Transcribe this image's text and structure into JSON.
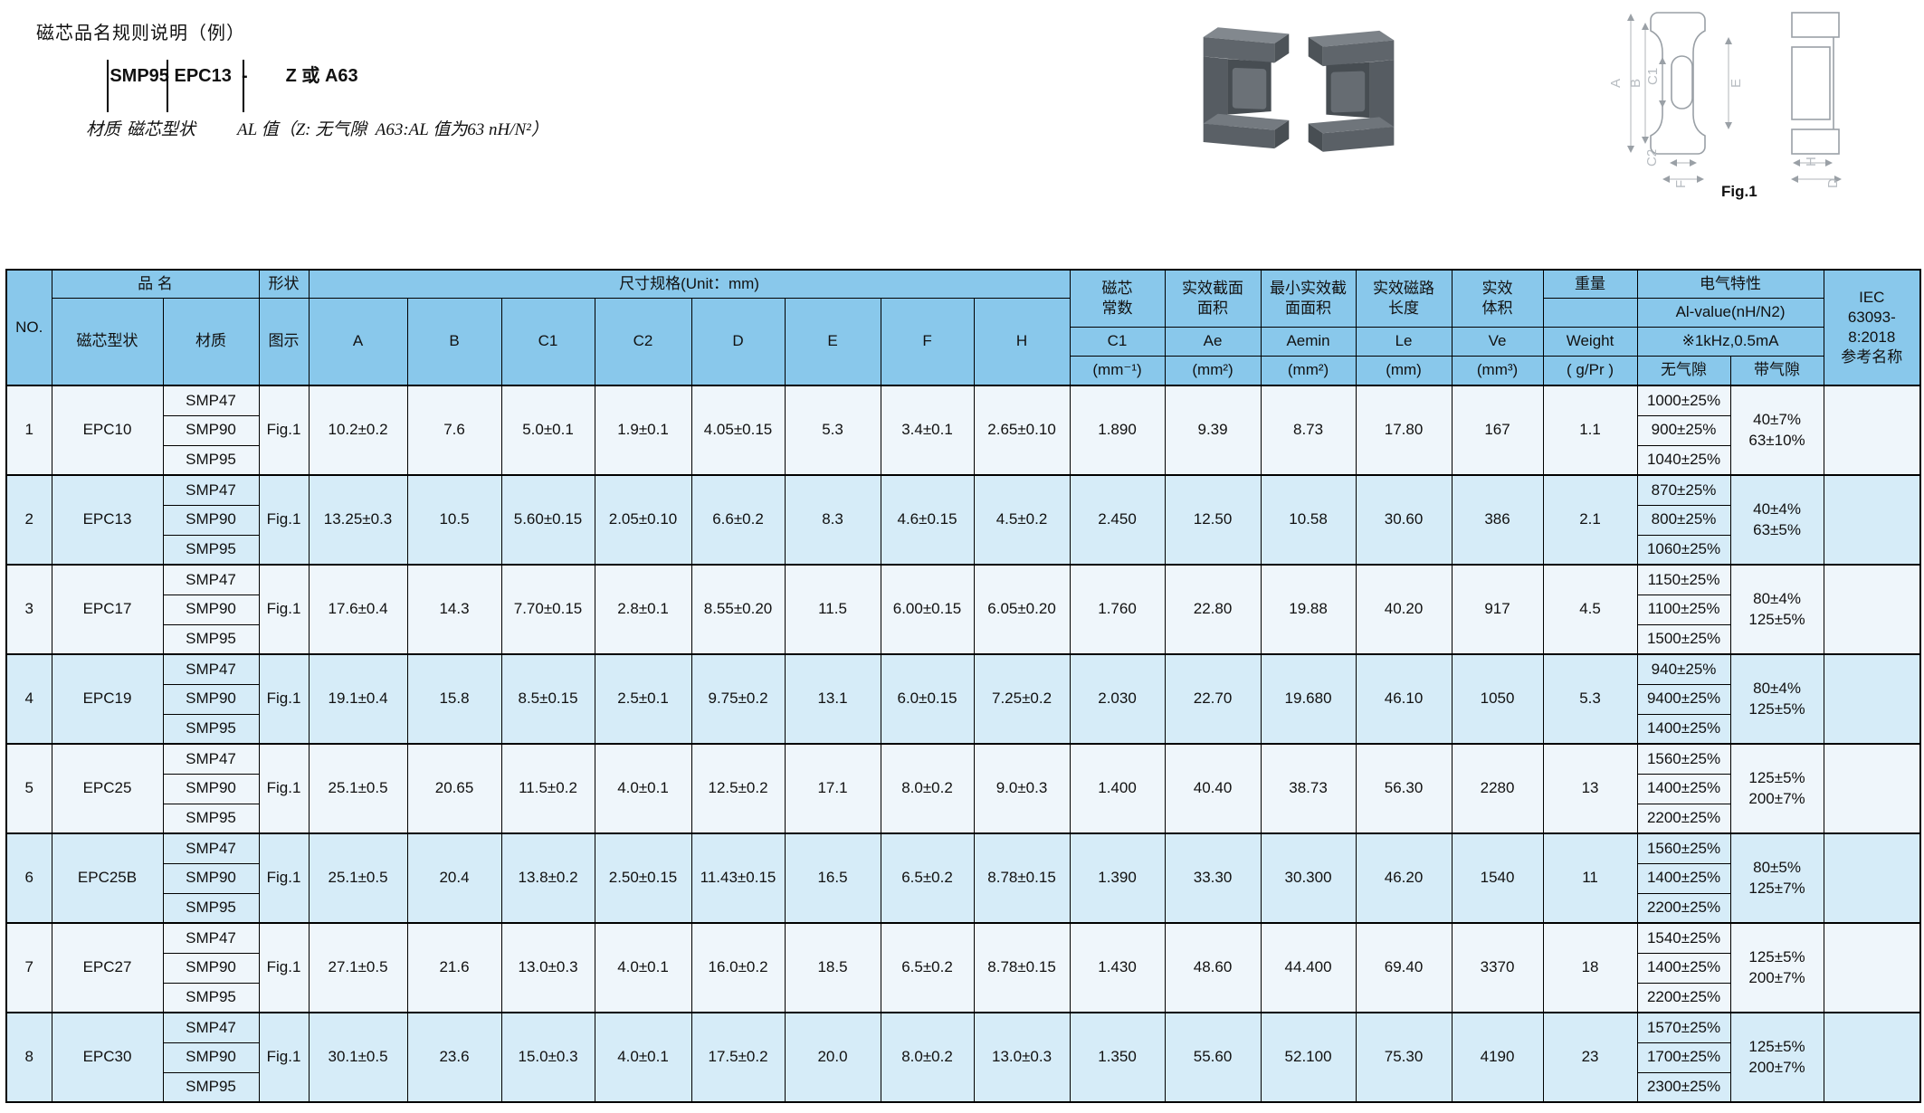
{
  "annotation": {
    "title": "磁芯品名规则说明（例）",
    "example_prefix": "SMP95 EPC13  -",
    "example_suffix": "Z 或 A63",
    "label_material": "材质",
    "label_shape": "磁芯型状",
    "label_al": "AL 值（Z: 无气隙  A63:AL 值为63 nH/N²）"
  },
  "figure": {
    "caption": "Fig.1",
    "dimension_labels": [
      "A",
      "B",
      "C1",
      "E",
      "C2",
      "F",
      "H",
      "D"
    ]
  },
  "colors": {
    "header_bg": "#89c8eb",
    "band_light": "#eff6fb",
    "band_blue": "#d6ecf8",
    "border": "#000000",
    "core_photo_gray": "#5c6166"
  },
  "table": {
    "header": {
      "no": "NO.",
      "product_name": "品 名",
      "core_shape": "磁芯型状",
      "material": "材质",
      "shape": "形状",
      "figure": "图示",
      "dims_title": "尺寸规格(Unit：mm)",
      "dims": [
        "A",
        "B",
        "C1",
        "C2",
        "D",
        "E",
        "F",
        "H"
      ],
      "core_const": {
        "title": "磁芯\n常数",
        "sym": "C1",
        "unit": "(mm⁻¹)"
      },
      "ae": {
        "title": "实效截面\n面积",
        "sym": "Ae",
        "unit": "(mm²)"
      },
      "aemin": {
        "title": "最小实效截\n面面积",
        "sym": "Aemin",
        "unit": "(mm²)"
      },
      "le": {
        "title": "实效磁路\n长度",
        "sym": "Le",
        "unit": "(mm)"
      },
      "ve": {
        "title": "实效\n体积",
        "sym": "Ve",
        "unit": "(mm³)"
      },
      "weight": {
        "title": "重量",
        "sym": "Weight",
        "unit": "( g/Pr )"
      },
      "electrical": {
        "title": "电气特性",
        "subtitle": "Al-value(nH/N2)",
        "condition": "※1kHz,0.5mA",
        "no_gap": "无气隙",
        "with_gap": "带气隙"
      },
      "iec": "IEC\n63093-\n8:2018\n参考名称"
    },
    "rows": [
      {
        "no": "1",
        "model": "EPC10",
        "fig": "Fig.1",
        "materials": [
          "SMP47",
          "SMP90",
          "SMP95"
        ],
        "dims": [
          "10.2±0.2",
          "7.6",
          "5.0±0.1",
          "1.9±0.1",
          "4.05±0.15",
          "5.3",
          "3.4±0.1",
          "2.65±0.10"
        ],
        "magnetics": [
          "1.890",
          "9.39",
          "8.73",
          "17.80",
          "167",
          "1.1"
        ],
        "al_no_gap": [
          "1000±25%",
          "900±25%",
          "1040±25%"
        ],
        "al_with_gap": "40±7%\n63±10%",
        "iec_ref": ""
      },
      {
        "no": "2",
        "model": "EPC13",
        "fig": "Fig.1",
        "materials": [
          "SMP47",
          "SMP90",
          "SMP95"
        ],
        "dims": [
          "13.25±0.3",
          "10.5",
          "5.60±0.15",
          "2.05±0.10",
          "6.6±0.2",
          "8.3",
          "4.6±0.15",
          "4.5±0.2"
        ],
        "magnetics": [
          "2.450",
          "12.50",
          "10.58",
          "30.60",
          "386",
          "2.1"
        ],
        "al_no_gap": [
          "870±25%",
          "800±25%",
          "1060±25%"
        ],
        "al_with_gap": "40±4%\n63±5%",
        "iec_ref": ""
      },
      {
        "no": "3",
        "model": "EPC17",
        "fig": "Fig.1",
        "materials": [
          "SMP47",
          "SMP90",
          "SMP95"
        ],
        "dims": [
          "17.6±0.4",
          "14.3",
          "7.70±0.15",
          "2.8±0.1",
          "8.55±0.20",
          "11.5",
          "6.00±0.15",
          "6.05±0.20"
        ],
        "magnetics": [
          "1.760",
          "22.80",
          "19.88",
          "40.20",
          "917",
          "4.5"
        ],
        "al_no_gap": [
          "1150±25%",
          "1100±25%",
          "1500±25%"
        ],
        "al_with_gap": "80±4%\n125±5%",
        "iec_ref": ""
      },
      {
        "no": "4",
        "model": "EPC19",
        "fig": "Fig.1",
        "materials": [
          "SMP47",
          "SMP90",
          "SMP95"
        ],
        "dims": [
          "19.1±0.4",
          "15.8",
          "8.5±0.15",
          "2.5±0.1",
          "9.75±0.2",
          "13.1",
          "6.0±0.15",
          "7.25±0.2"
        ],
        "magnetics": [
          "2.030",
          "22.70",
          "19.680",
          "46.10",
          "1050",
          "5.3"
        ],
        "al_no_gap": [
          "940±25%",
          "9400±25%",
          "1400±25%"
        ],
        "al_with_gap": "80±4%\n125±5%",
        "iec_ref": ""
      },
      {
        "no": "5",
        "model": "EPC25",
        "fig": "Fig.1",
        "materials": [
          "SMP47",
          "SMP90",
          "SMP95"
        ],
        "dims": [
          "25.1±0.5",
          "20.65",
          "11.5±0.2",
          "4.0±0.1",
          "12.5±0.2",
          "17.1",
          "8.0±0.2",
          "9.0±0.3"
        ],
        "magnetics": [
          "1.400",
          "40.40",
          "38.73",
          "56.30",
          "2280",
          "13"
        ],
        "al_no_gap": [
          "1560±25%",
          "1400±25%",
          "2200±25%"
        ],
        "al_with_gap": "125±5%\n200±7%",
        "iec_ref": ""
      },
      {
        "no": "6",
        "model": "EPC25B",
        "fig": "Fig.1",
        "materials": [
          "SMP47",
          "SMP90",
          "SMP95"
        ],
        "dims": [
          "25.1±0.5",
          "20.4",
          "13.8±0.2",
          "2.50±0.15",
          "11.43±0.15",
          "16.5",
          "6.5±0.2",
          "8.78±0.15"
        ],
        "magnetics": [
          "1.390",
          "33.30",
          "30.300",
          "46.20",
          "1540",
          "11"
        ],
        "al_no_gap": [
          "1560±25%",
          "1400±25%",
          "2200±25%"
        ],
        "al_with_gap": "80±5%\n125±7%",
        "iec_ref": ""
      },
      {
        "no": "7",
        "model": "EPC27",
        "fig": "Fig.1",
        "materials": [
          "SMP47",
          "SMP90",
          "SMP95"
        ],
        "dims": [
          "27.1±0.5",
          "21.6",
          "13.0±0.3",
          "4.0±0.1",
          "16.0±0.2",
          "18.5",
          "6.5±0.2",
          "8.78±0.15"
        ],
        "magnetics": [
          "1.430",
          "48.60",
          "44.400",
          "69.40",
          "3370",
          "18"
        ],
        "al_no_gap": [
          "1540±25%",
          "1400±25%",
          "2200±25%"
        ],
        "al_with_gap": "125±5%\n200±7%",
        "iec_ref": ""
      },
      {
        "no": "8",
        "model": "EPC30",
        "fig": "Fig.1",
        "materials": [
          "SMP47",
          "SMP90",
          "SMP95"
        ],
        "dims": [
          "30.1±0.5",
          "23.6",
          "15.0±0.3",
          "4.0±0.1",
          "17.5±0.2",
          "20.0",
          "8.0±0.2",
          "13.0±0.3"
        ],
        "magnetics": [
          "1.350",
          "55.60",
          "52.100",
          "75.30",
          "4190",
          "23"
        ],
        "al_no_gap": [
          "1570±25%",
          "1700±25%",
          "2300±25%"
        ],
        "al_with_gap": "125±5%\n200±7%",
        "iec_ref": ""
      }
    ]
  }
}
